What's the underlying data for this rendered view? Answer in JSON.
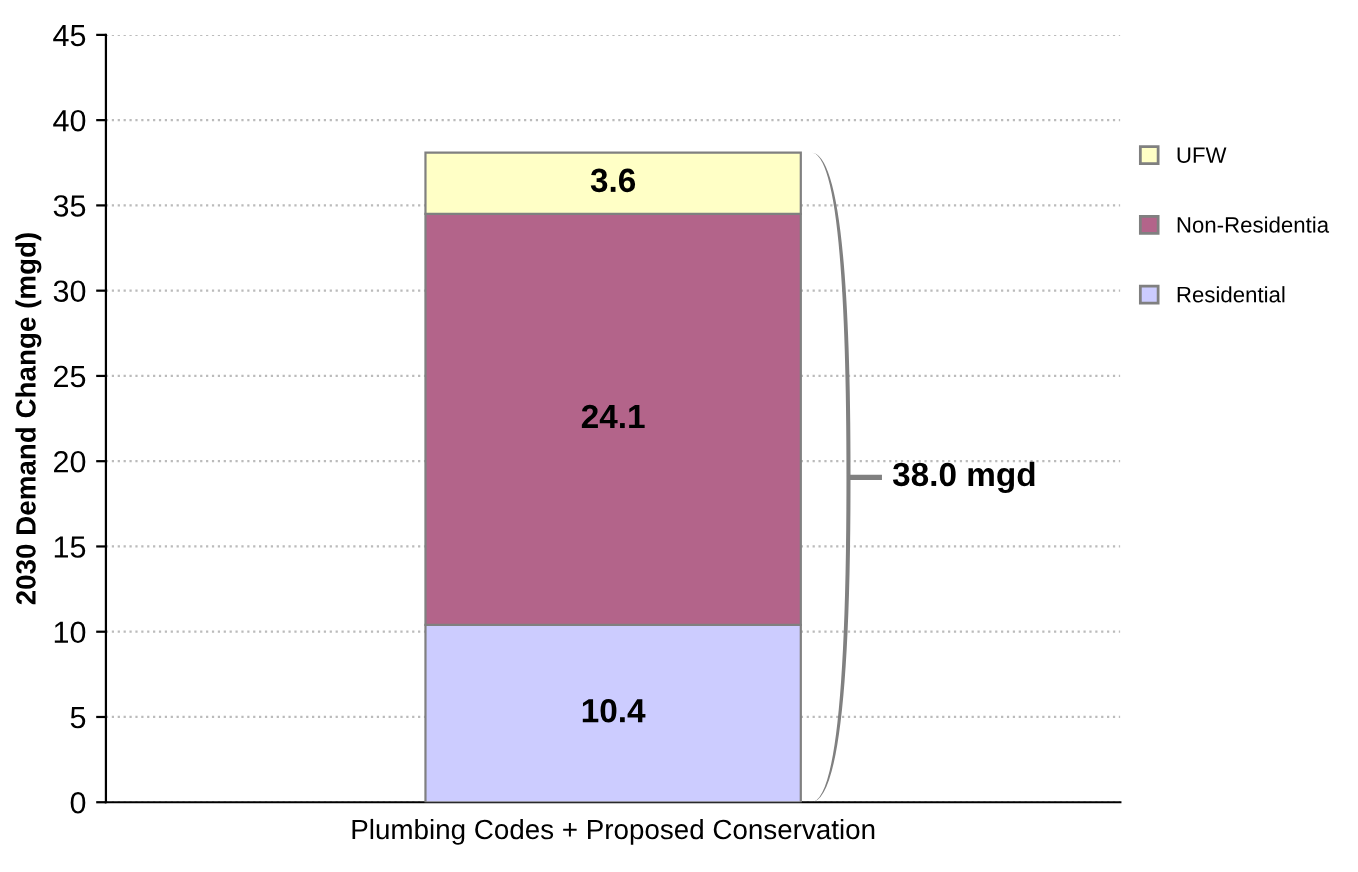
{
  "chart_data": {
    "type": "bar",
    "stacked": true,
    "ylabel": "2030 Demand Change (mgd)",
    "categories": [
      "Plumbing Codes + Proposed Conservation"
    ],
    "series": [
      {
        "name": "Residential",
        "color": "#ccccff",
        "values": [
          10.4
        ]
      },
      {
        "name": "Non-Residentia",
        "color": "#b3648a",
        "values": [
          24.1
        ]
      },
      {
        "name": "UFW",
        "color": "#ffffc6",
        "values": [
          3.6
        ]
      }
    ],
    "ylim": [
      0,
      45
    ],
    "yticks": [
      0,
      5,
      10,
      15,
      20,
      25,
      30,
      35,
      40,
      45
    ],
    "grid": "y",
    "legend": "right",
    "data_labels": true,
    "totals": [
      "38.0 mgd"
    ]
  }
}
